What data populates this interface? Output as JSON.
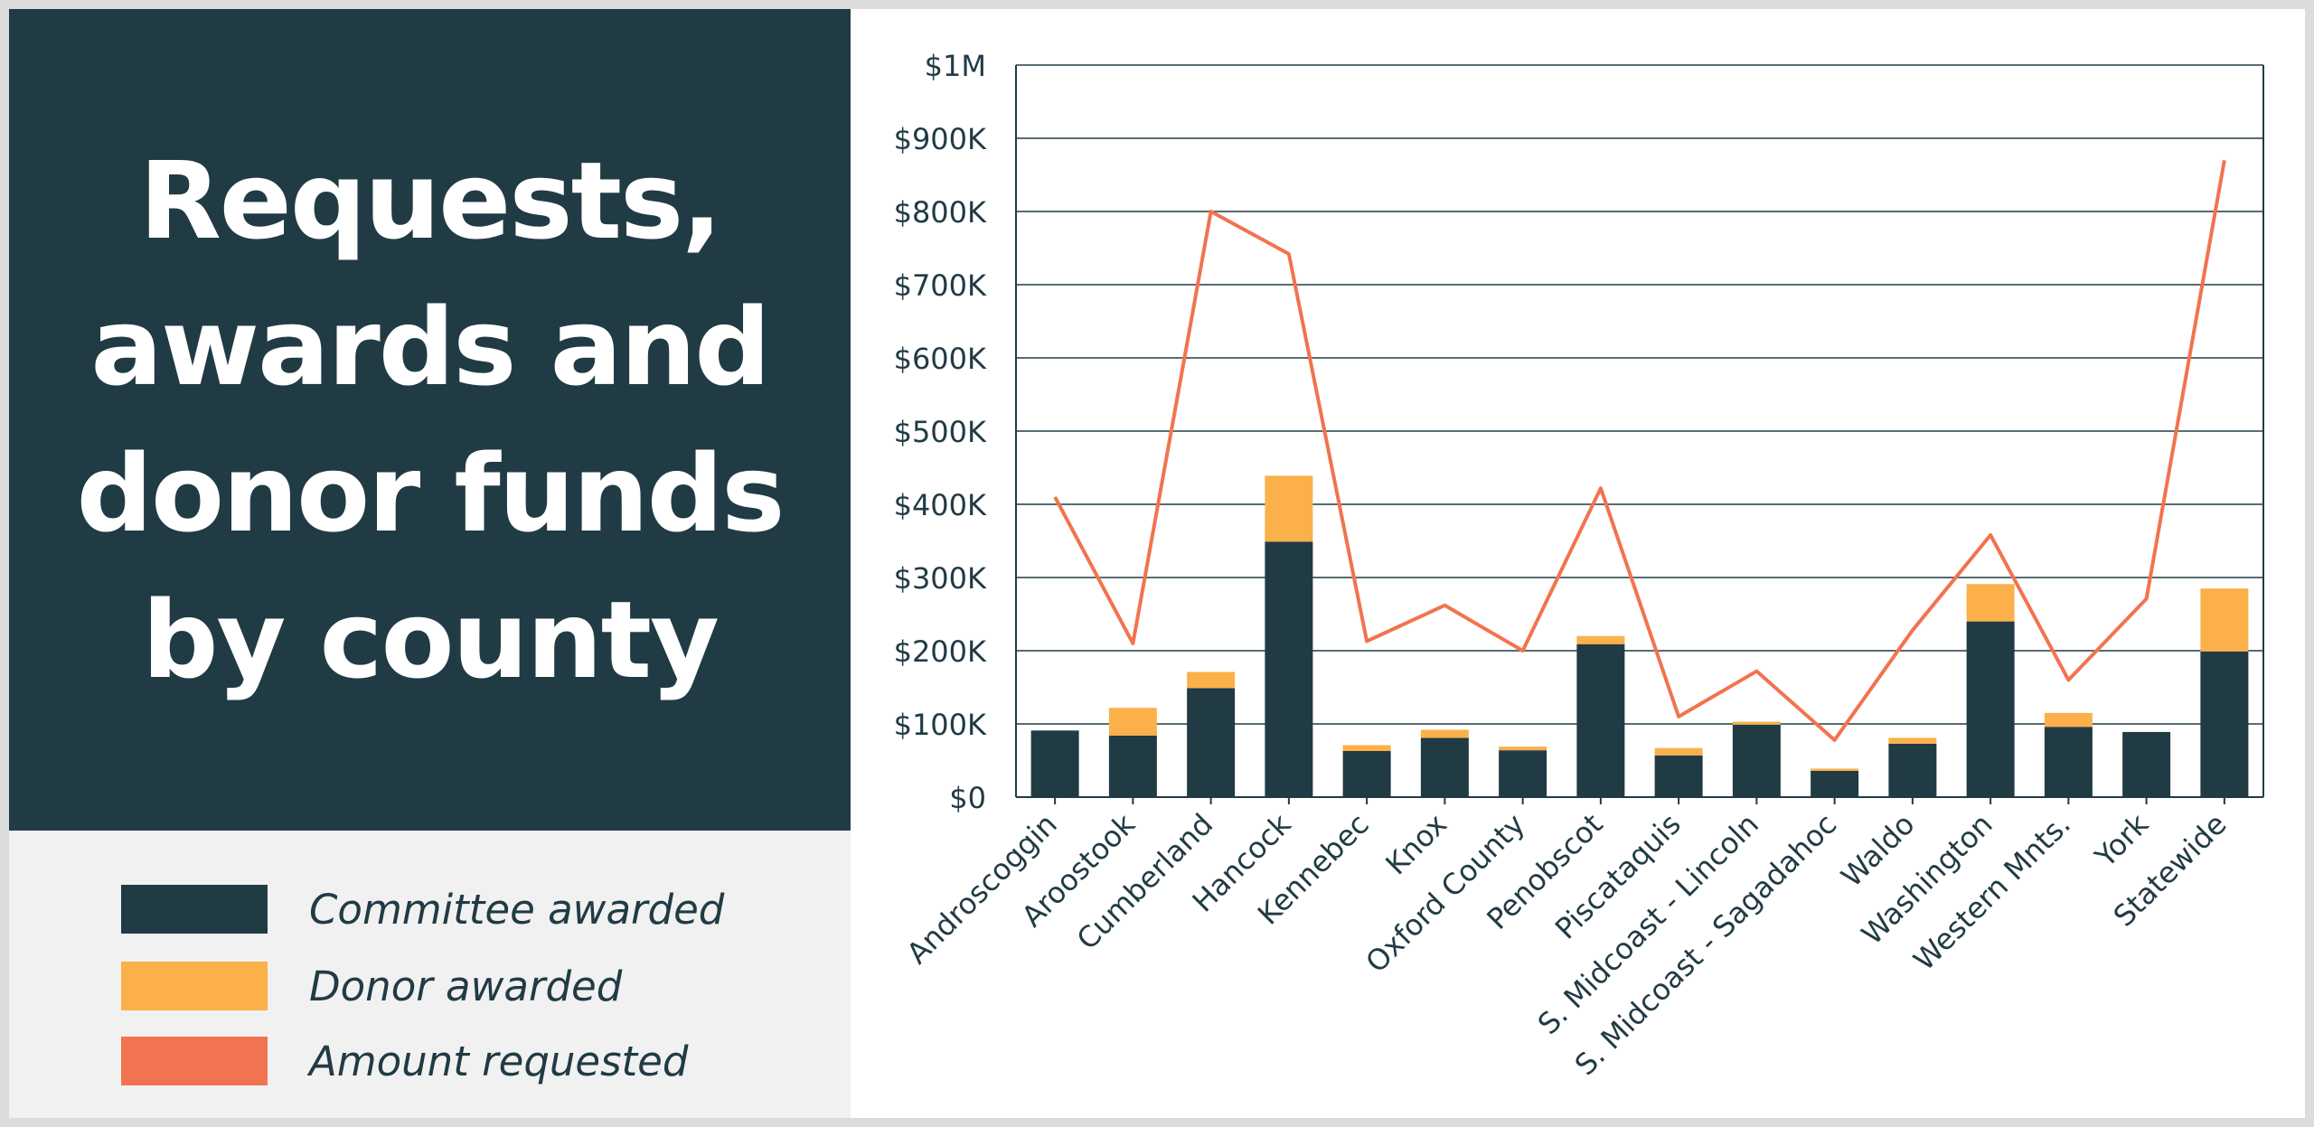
{
  "title": "Requests, awards and donor funds by county",
  "legend": [
    {
      "label": "Committee awarded",
      "color": "#213b45"
    },
    {
      "label": "Donor awarded",
      "color": "#fbb04a"
    },
    {
      "label": "Amount requested",
      "color": "#f2734f"
    }
  ],
  "chart_data": {
    "type": "bar",
    "stacked": true,
    "categories": [
      "Androscoggin",
      "Aroostook",
      "Cumberland",
      "Hancock",
      "Kennebec",
      "Knox",
      "Oxford County",
      "Penobscot",
      "Piscataquis",
      "S. Midcoast - Lincoln",
      "S. Midcoast - Sagadahoc",
      "Waldo",
      "Washington",
      "Western Mnts.",
      "York",
      "Statewide"
    ],
    "series": [
      {
        "name": "Committee awarded",
        "type": "bar",
        "color": "#213b45",
        "values": [
          91000,
          84000,
          149000,
          349000,
          63000,
          81000,
          64000,
          209000,
          57000,
          99000,
          36000,
          73000,
          240000,
          96000,
          89000,
          199000
        ]
      },
      {
        "name": "Donor awarded",
        "type": "bar",
        "color": "#fbb04a",
        "values": [
          0,
          38000,
          22000,
          90000,
          8000,
          11000,
          5000,
          11000,
          10000,
          4000,
          3000,
          8000,
          51000,
          19000,
          0,
          86000
        ]
      },
      {
        "name": "Amount requested",
        "type": "line",
        "color": "#f2734f",
        "values": [
          410000,
          210000,
          800000,
          742000,
          213000,
          262000,
          200000,
          422000,
          110000,
          172000,
          78000,
          228000,
          358000,
          160000,
          271000,
          870000
        ]
      }
    ],
    "yticks": [
      {
        "value": 0,
        "label": "$0"
      },
      {
        "value": 100000,
        "label": "$100K"
      },
      {
        "value": 200000,
        "label": "$200K"
      },
      {
        "value": 300000,
        "label": "$300K"
      },
      {
        "value": 400000,
        "label": "$400K"
      },
      {
        "value": 500000,
        "label": "$500K"
      },
      {
        "value": 600000,
        "label": "$600K"
      },
      {
        "value": 700000,
        "label": "$700K"
      },
      {
        "value": 800000,
        "label": "$800K"
      },
      {
        "value": 900000,
        "label": "$900K"
      },
      {
        "value": 1000000,
        "label": "$1M"
      }
    ],
    "ylim": [
      0,
      1000000
    ],
    "grid": true,
    "legend_position": "bottom-left"
  }
}
